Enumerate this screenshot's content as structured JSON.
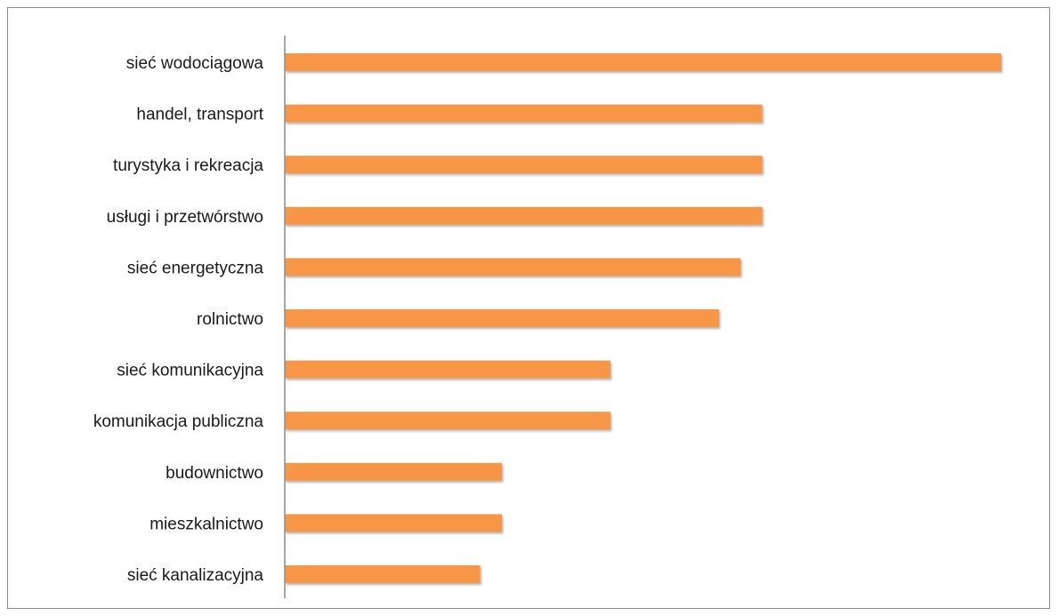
{
  "chart_data": {
    "type": "bar",
    "orientation": "horizontal",
    "title": "",
    "xlabel": "",
    "ylabel": "",
    "categories": [
      "sieć wodociągowa",
      "handel, transport",
      "turystyka i rekreacja",
      "usługi i przetwórstwo",
      "sieć energetyczna",
      "rolnictwo",
      "sieć komunikacyjna",
      "komunikacja publiczna",
      "budownictwo",
      "mieszkalnictwo",
      "sieć kanalizacyjna"
    ],
    "values": [
      33,
      22,
      22,
      22,
      21,
      20,
      15,
      15,
      10,
      10,
      9
    ],
    "xlim": [
      0,
      33
    ],
    "grid": false,
    "legend": "none",
    "bar_color": "#f79646",
    "axis_color": "#8c8c8c"
  }
}
